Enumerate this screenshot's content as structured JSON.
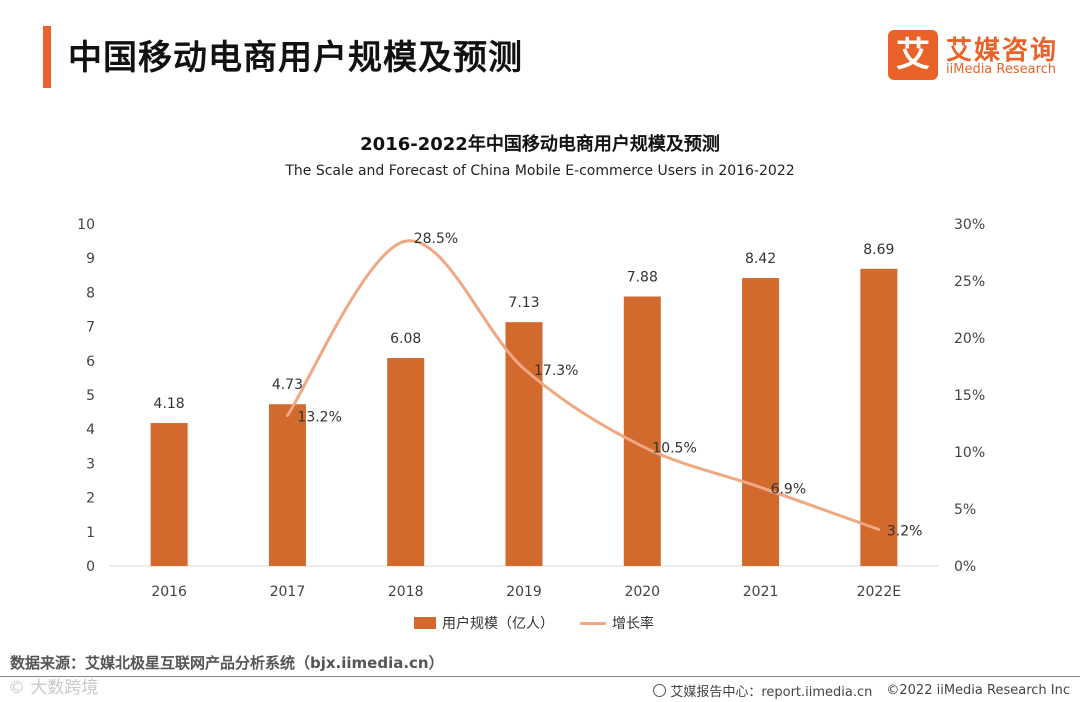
{
  "header": {
    "title": "中国移动电商用户规模及预测",
    "logo_mark": "艾",
    "logo_cn": "艾媒咨询",
    "logo_en": "iiMedia Research"
  },
  "chart_data": {
    "type": "bar",
    "title": "2016-2022年中国移动电商用户规模及预测",
    "subtitle": "The Scale and Forecast of China Mobile E-commerce Users in 2016-2022",
    "categories": [
      "2016",
      "2017",
      "2018",
      "2019",
      "2020",
      "2021",
      "2022E"
    ],
    "series": [
      {
        "name": "用户规模（亿人）",
        "type": "bar",
        "axis": "left",
        "values": [
          4.18,
          4.73,
          6.08,
          7.13,
          7.88,
          8.42,
          8.69
        ],
        "labels": [
          "4.18",
          "4.73",
          "6.08",
          "7.13",
          "7.88",
          "8.42",
          "8.69"
        ],
        "color": "#d2692d"
      },
      {
        "name": "增长率",
        "type": "line",
        "axis": "right",
        "values": [
          null,
          13.2,
          28.5,
          17.3,
          10.5,
          6.9,
          3.2
        ],
        "labels": [
          "",
          "13.2%",
          "28.5%",
          "17.3%",
          "10.5%",
          "6.9%",
          "3.2%"
        ],
        "color": "#f0a883"
      }
    ],
    "y_left": {
      "min": 0,
      "max": 10,
      "ticks": [
        "0",
        "1",
        "2",
        "3",
        "4",
        "5",
        "6",
        "7",
        "8",
        "9",
        "10"
      ]
    },
    "y_right": {
      "min": 0,
      "max": 30,
      "ticks": [
        "0%",
        "5%",
        "10%",
        "15%",
        "20%",
        "25%",
        "30%"
      ]
    },
    "grid": false,
    "legend_position": "bottom"
  },
  "footer": {
    "source": "数据来源：艾媒北极星互联网产品分析系统（bjx.iimedia.cn）",
    "watermark": "© 大数跨境",
    "report": "艾媒报告中心：report.iimedia.cn",
    "copyright": "©2022  iiMedia Research  Inc"
  }
}
